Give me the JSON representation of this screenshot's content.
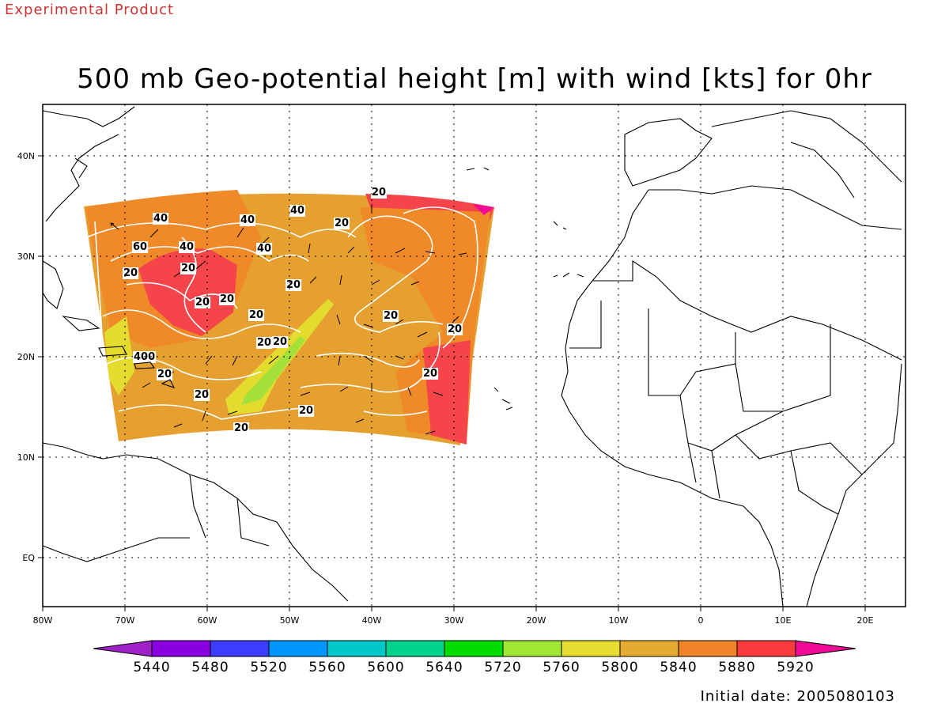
{
  "header": {
    "tag": "Experimental Product",
    "title": "500 mb Geo-potential height [m] with wind [kts] for 0hr"
  },
  "footer": {
    "initial_date": "Initial date: 2005080103"
  },
  "map": {
    "lon_range": [
      -80,
      25
    ],
    "lat_range": [
      -5,
      45
    ],
    "x_ticks": [
      "80W",
      "70W",
      "60W",
      "50W",
      "40W",
      "30W",
      "20W",
      "10W",
      "0",
      "10E",
      "20E"
    ],
    "y_ticks": [
      "EQ",
      "10N",
      "20N",
      "30N",
      "40N"
    ],
    "colors": {
      "tag": "#cc3333",
      "field_light": "#e6a030",
      "field_orange": "#f08a28",
      "field_red": "#f5454a",
      "field_yellow": "#e3dc2e",
      "field_green": "#a4e03a",
      "contour": "#ffffff"
    },
    "wind_labels": [
      "40",
      "60",
      "40",
      "40",
      "40",
      "20",
      "40",
      "20",
      "20",
      "20",
      "20",
      "20",
      "20",
      "20",
      "20",
      "400",
      "20",
      "20",
      "20",
      "20",
      "20",
      "20",
      "20"
    ]
  },
  "colorbar": {
    "labels": [
      "5440",
      "5480",
      "5520",
      "5560",
      "5600",
      "5640",
      "5720",
      "5760",
      "5800",
      "5840",
      "5880",
      "5920"
    ],
    "colors": [
      "#a020c8",
      "#8a00e0",
      "#3a3cff",
      "#0096ff",
      "#00c8c8",
      "#00d28a",
      "#00dc00",
      "#a0e632",
      "#e6dc32",
      "#e6aa32",
      "#f08228",
      "#fa3c3c",
      "#f00a96"
    ]
  }
}
